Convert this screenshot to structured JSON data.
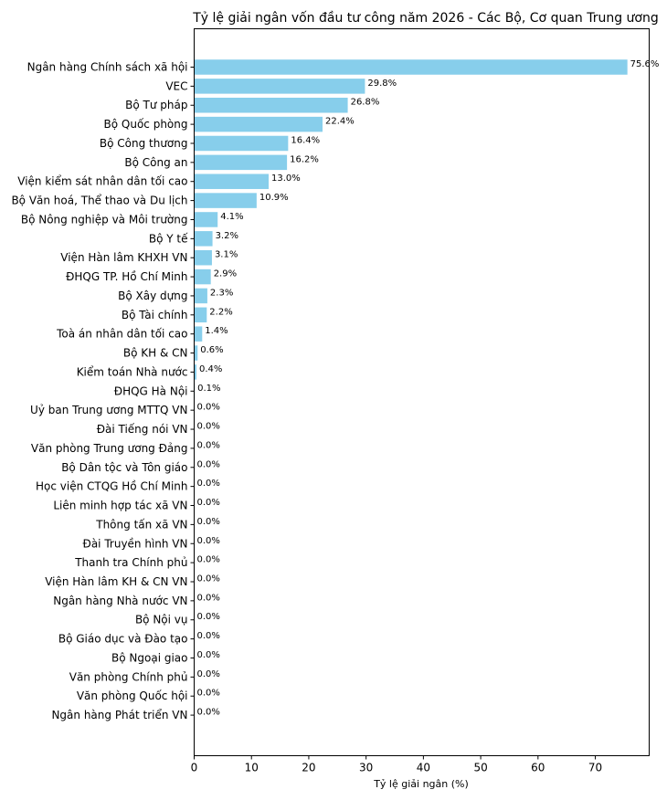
{
  "chart_data": {
    "type": "bar",
    "orientation": "horizontal",
    "title": "Tỷ lệ giải ngân vốn đầu tư công năm 2026 - Các Bộ, Cơ quan Trung ương",
    "xlabel": "Tỷ lệ giải ngân (%)",
    "ylabel": "",
    "xlim": [
      0,
      79.4
    ],
    "xticks": [
      0,
      10,
      20,
      30,
      40,
      50,
      60,
      70
    ],
    "grid": false,
    "bar_color": "#87CEEB",
    "categories": [
      "Ngân hàng Chính sách xã hội",
      "VEC",
      "Bộ Tư pháp",
      "Bộ Quốc phòng",
      "Bộ Công thương",
      "Bộ Công an",
      "Viện kiểm sát nhân dân tối cao",
      "Bộ Văn hoá, Thể thao và Du lịch",
      "Bộ Nông nghiệp và Môi trường",
      "Bộ Y tế",
      "Viện Hàn lâm KHXH VN",
      "ĐHQG TP. Hồ Chí Minh",
      "Bộ Xây dựng",
      "Bộ Tài chính",
      "Toà án nhân dân tối cao",
      "Bộ KH & CN",
      "Kiểm toán Nhà nước",
      "ĐHQG Hà Nội",
      "Uỷ ban Trung ương MTTQ VN",
      "Đài Tiếng nói VN",
      "Văn phòng Trung ương Đảng",
      "Bộ Dân tộc và Tôn giáo",
      "Học viện CTQG Hồ Chí Minh",
      "Liên minh hợp tác xã VN",
      "Thông tấn xã VN",
      "Đài Truyền hình VN",
      "Thanh tra Chính phủ",
      "Viện Hàn lâm KH & CN VN",
      "Ngân hàng Nhà nước VN",
      "Bộ Nội vụ",
      "Bộ Giáo dục và Đào tạo",
      "Bộ Ngoại giao",
      "Văn phòng Chính phủ",
      "Văn phòng Quốc hội",
      "Ngân hàng Phát triển VN"
    ],
    "values": [
      75.6,
      29.8,
      26.8,
      22.4,
      16.4,
      16.2,
      13.0,
      10.9,
      4.1,
      3.2,
      3.1,
      2.9,
      2.3,
      2.2,
      1.4,
      0.6,
      0.4,
      0.1,
      0.0,
      0.0,
      0.0,
      0.0,
      0.0,
      0.0,
      0.0,
      0.0,
      0.0,
      0.0,
      0.0,
      0.0,
      0.0,
      0.0,
      0.0,
      0.0,
      0.0
    ],
    "value_labels": [
      "75.6%",
      "29.8%",
      "26.8%",
      "22.4%",
      "16.4%",
      "16.2%",
      "13.0%",
      "10.9%",
      "4.1%",
      "3.2%",
      "3.1%",
      "2.9%",
      "2.3%",
      "2.2%",
      "1.4%",
      "0.6%",
      "0.4%",
      "0.1%",
      "0.0%",
      "0.0%",
      "0.0%",
      "0.0%",
      "0.0%",
      "0.0%",
      "0.0%",
      "0.0%",
      "0.0%",
      "0.0%",
      "0.0%",
      "0.0%",
      "0.0%",
      "0.0%",
      "0.0%",
      "0.0%",
      "0.0%"
    ]
  }
}
